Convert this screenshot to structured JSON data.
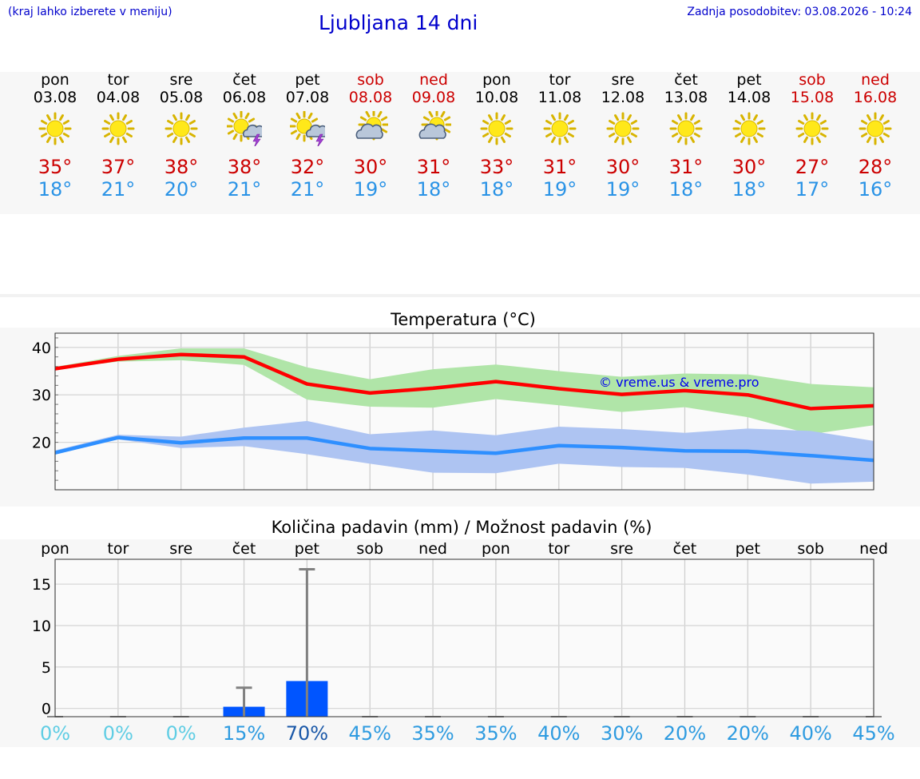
{
  "header": {
    "note": "(kraj lahko izberete v meniju)",
    "title": "Ljubljana 14 dni",
    "updated": "Zadnja posodobitev: 03.08.2026 - 10:24"
  },
  "days": [
    {
      "name": "pon",
      "date": "03.08",
      "hi": "35°",
      "lo": "18°",
      "icon": "sun-icon",
      "weekend": false
    },
    {
      "name": "tor",
      "date": "04.08",
      "hi": "37°",
      "lo": "21°",
      "icon": "sun-icon",
      "weekend": false
    },
    {
      "name": "sre",
      "date": "05.08",
      "hi": "38°",
      "lo": "20°",
      "icon": "sun-icon",
      "weekend": false
    },
    {
      "name": "čet",
      "date": "06.08",
      "hi": "38°",
      "lo": "21°",
      "icon": "sun-storm-icon",
      "weekend": false
    },
    {
      "name": "pet",
      "date": "07.08",
      "hi": "32°",
      "lo": "21°",
      "icon": "sun-storm-icon",
      "weekend": false
    },
    {
      "name": "sob",
      "date": "08.08",
      "hi": "30°",
      "lo": "19°",
      "icon": "sun-cloud-icon",
      "weekend": true
    },
    {
      "name": "ned",
      "date": "09.08",
      "hi": "31°",
      "lo": "18°",
      "icon": "sun-cloud-icon",
      "weekend": true
    },
    {
      "name": "pon",
      "date": "10.08",
      "hi": "33°",
      "lo": "18°",
      "icon": "sun-icon",
      "weekend": false
    },
    {
      "name": "tor",
      "date": "11.08",
      "hi": "31°",
      "lo": "19°",
      "icon": "sun-icon",
      "weekend": false
    },
    {
      "name": "sre",
      "date": "12.08",
      "hi": "30°",
      "lo": "19°",
      "icon": "sun-icon",
      "weekend": false
    },
    {
      "name": "čet",
      "date": "13.08",
      "hi": "31°",
      "lo": "18°",
      "icon": "sun-icon",
      "weekend": false
    },
    {
      "name": "pet",
      "date": "14.08",
      "hi": "30°",
      "lo": "18°",
      "icon": "sun-icon",
      "weekend": false
    },
    {
      "name": "sob",
      "date": "15.08",
      "hi": "27°",
      "lo": "17°",
      "icon": "sun-icon",
      "weekend": true
    },
    {
      "name": "ned",
      "date": "16.08",
      "hi": "28°",
      "lo": "16°",
      "icon": "sun-icon",
      "weekend": true
    }
  ],
  "chart_data": [
    {
      "type": "line",
      "title": "Temperatura (°C)",
      "ylim": [
        10,
        43
      ],
      "yticks": [
        20,
        30,
        40
      ],
      "grid": true,
      "watermark": "© vreme.us & vreme.pro",
      "series": [
        {
          "values": [
            35.5,
            37.5,
            38.5,
            38,
            32.3,
            30.4,
            31.4,
            32.8,
            31.3,
            30.1,
            30.9,
            30,
            27.1,
            27.7
          ],
          "band_low": [
            35.4,
            37,
            37.3,
            36.3,
            29,
            27.5,
            27.3,
            29.1,
            27.8,
            26.4,
            27.4,
            25.3,
            21.7,
            23.6
          ],
          "band_high": [
            35.9,
            38.2,
            39.8,
            39.8,
            35.8,
            33.3,
            35.4,
            36.4,
            35,
            33.8,
            34.5,
            34.3,
            32.3,
            31.6
          ],
          "color": "#ff0000",
          "band_color": "#b0e5a8"
        },
        {
          "values": [
            17.8,
            21,
            19.9,
            20.9,
            20.9,
            18.7,
            18.2,
            17.7,
            19.3,
            18.9,
            18.2,
            18.1,
            17.2,
            16.2
          ],
          "band_low": [
            17.5,
            20.6,
            18.8,
            19.2,
            17.5,
            15.5,
            13.6,
            13.5,
            15.5,
            14.8,
            14.6,
            13.2,
            11.3,
            11.7
          ],
          "band_high": [
            18.3,
            21.6,
            21.2,
            23.1,
            24.5,
            21.7,
            22.5,
            21.5,
            23.3,
            22.8,
            22,
            22.9,
            22.4,
            20.3
          ],
          "color": "#2e8fff",
          "band_color": "#aec4f2"
        }
      ]
    },
    {
      "type": "bar",
      "title": "Količina padavin (mm) / Možnost padavin (%)",
      "categories": [
        "pon",
        "tor",
        "sre",
        "čet",
        "pet",
        "sob",
        "ned",
        "pon",
        "tor",
        "sre",
        "čet",
        "pet",
        "sob",
        "ned"
      ],
      "ylim": [
        -1,
        18
      ],
      "yticks": [
        0,
        5,
        10,
        15
      ],
      "grid": true,
      "values": [
        0,
        0,
        0,
        0.2,
        3.3,
        0,
        0,
        0,
        0,
        0,
        0,
        0,
        0,
        0
      ],
      "error_high": [
        0,
        0,
        0,
        2.5,
        16.8,
        0,
        0,
        0,
        0,
        0,
        0,
        0,
        0,
        0
      ],
      "probability": [
        "0%",
        "0%",
        "0%",
        "15%",
        "70%",
        "45%",
        "35%",
        "35%",
        "40%",
        "30%",
        "20%",
        "20%",
        "40%",
        "45%"
      ],
      "probability_values": [
        0,
        0,
        0,
        15,
        70,
        45,
        35,
        35,
        40,
        30,
        20,
        20,
        40,
        45
      ],
      "bar_color": "#0055ff"
    }
  ],
  "colors": {
    "title_blue": "#0000cc",
    "hi_red": "#cc0000",
    "lo_blue": "#2a93e6",
    "weekend_red": "#cc0000"
  }
}
